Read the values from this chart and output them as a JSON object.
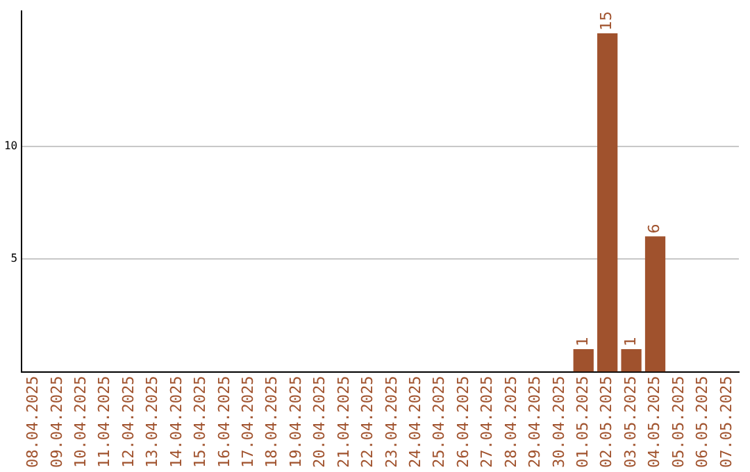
{
  "chart_data": {
    "type": "bar",
    "categories": [
      "08.04.2025",
      "09.04.2025",
      "10.04.2025",
      "11.04.2025",
      "12.04.2025",
      "13.04.2025",
      "14.04.2025",
      "15.04.2025",
      "16.04.2025",
      "17.04.2025",
      "18.04.2025",
      "19.04.2025",
      "20.04.2025",
      "21.04.2025",
      "22.04.2025",
      "23.04.2025",
      "24.04.2025",
      "25.04.2025",
      "26.04.2025",
      "27.04.2025",
      "28.04.2025",
      "29.04.2025",
      "30.04.2025",
      "01.05.2025",
      "02.05.2025",
      "03.05.2025",
      "04.05.2025",
      "05.05.2025",
      "06.05.2025",
      "07.05.2025"
    ],
    "values": [
      0,
      0,
      0,
      0,
      0,
      0,
      0,
      0,
      0,
      0,
      0,
      0,
      0,
      0,
      0,
      0,
      0,
      0,
      0,
      0,
      0,
      0,
      0,
      1,
      15,
      1,
      6,
      0,
      0,
      0
    ],
    "value_labels": [
      null,
      null,
      null,
      null,
      null,
      null,
      null,
      null,
      null,
      null,
      null,
      null,
      null,
      null,
      null,
      null,
      null,
      null,
      null,
      null,
      null,
      null,
      null,
      "1",
      "15",
      "1",
      "6",
      null,
      null,
      null
    ],
    "color": "#a0522d",
    "ylim": [
      0,
      16
    ],
    "yticks": [
      5,
      10
    ],
    "grid": "y",
    "legend": false
  }
}
